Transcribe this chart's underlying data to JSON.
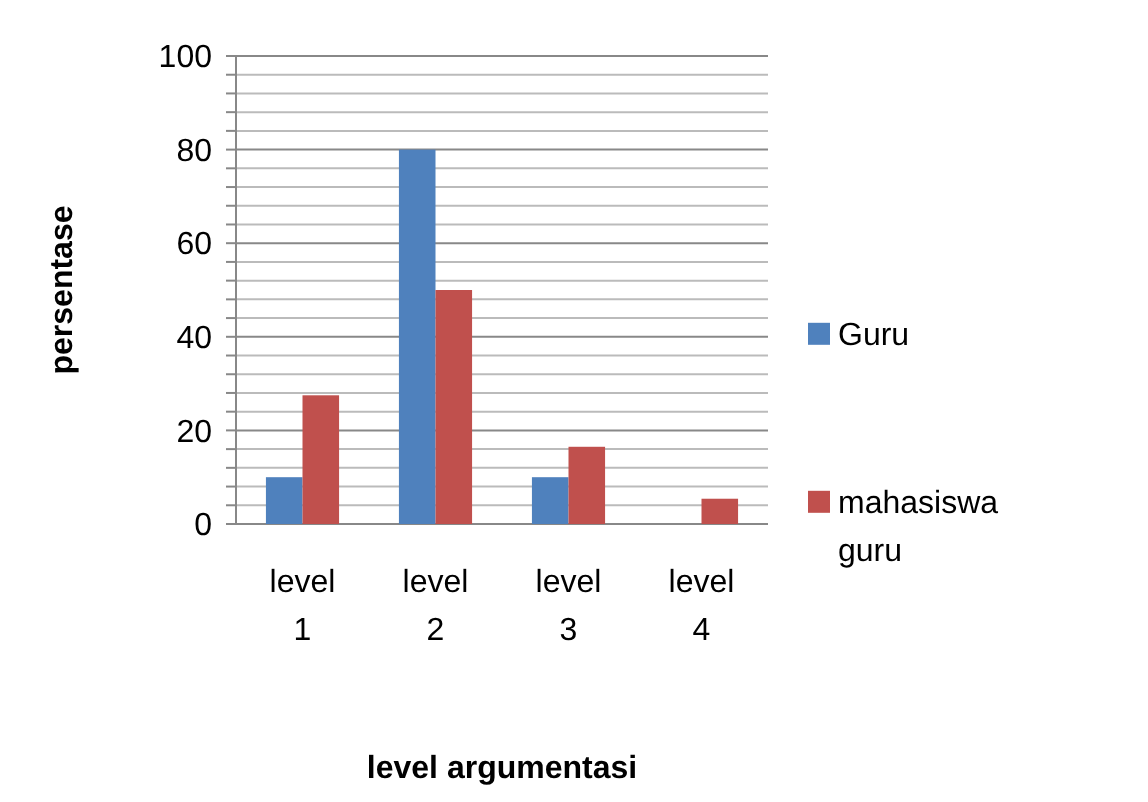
{
  "chart_data": {
    "type": "bar",
    "xlabel": "level argumentasi",
    "ylabel": "persentase",
    "categories": [
      "level 1",
      "level 2",
      "level 3",
      "level 4"
    ],
    "series": [
      {
        "name": "Guru",
        "color": "#4f81bd",
        "values": [
          10,
          80,
          10,
          0
        ]
      },
      {
        "name": "mahasiswa guru",
        "color": "#c0504d",
        "values": [
          27.5,
          50,
          16.5,
          5.4
        ]
      }
    ],
    "ylim": [
      0,
      100
    ],
    "yticks": [
      0,
      {
        "value": 4,
        "label": null
      },
      {
        "value": 8,
        "label": null
      },
      {
        "value": 12,
        "label": null
      },
      {
        "value": 16,
        "label": null
      },
      20,
      {
        "value": 24,
        "label": null
      },
      {
        "value": 28,
        "label": null
      },
      {
        "value": 32,
        "label": null
      },
      {
        "value": 36,
        "label": null
      },
      40,
      {
        "value": 44,
        "label": null
      },
      {
        "value": 48,
        "label": null
      },
      {
        "value": 52,
        "label": null
      },
      {
        "value": 56,
        "label": null
      },
      60,
      {
        "value": 64,
        "label": null
      },
      {
        "value": 68,
        "label": null
      },
      {
        "value": 72,
        "label": null
      },
      {
        "value": 76,
        "label": null
      },
      80,
      {
        "value": 84,
        "label": null
      },
      {
        "value": 88,
        "label": null
      },
      {
        "value": 92,
        "label": null
      },
      {
        "value": 96,
        "label": null
      },
      100
    ],
    "grid": true,
    "legend": "right"
  }
}
